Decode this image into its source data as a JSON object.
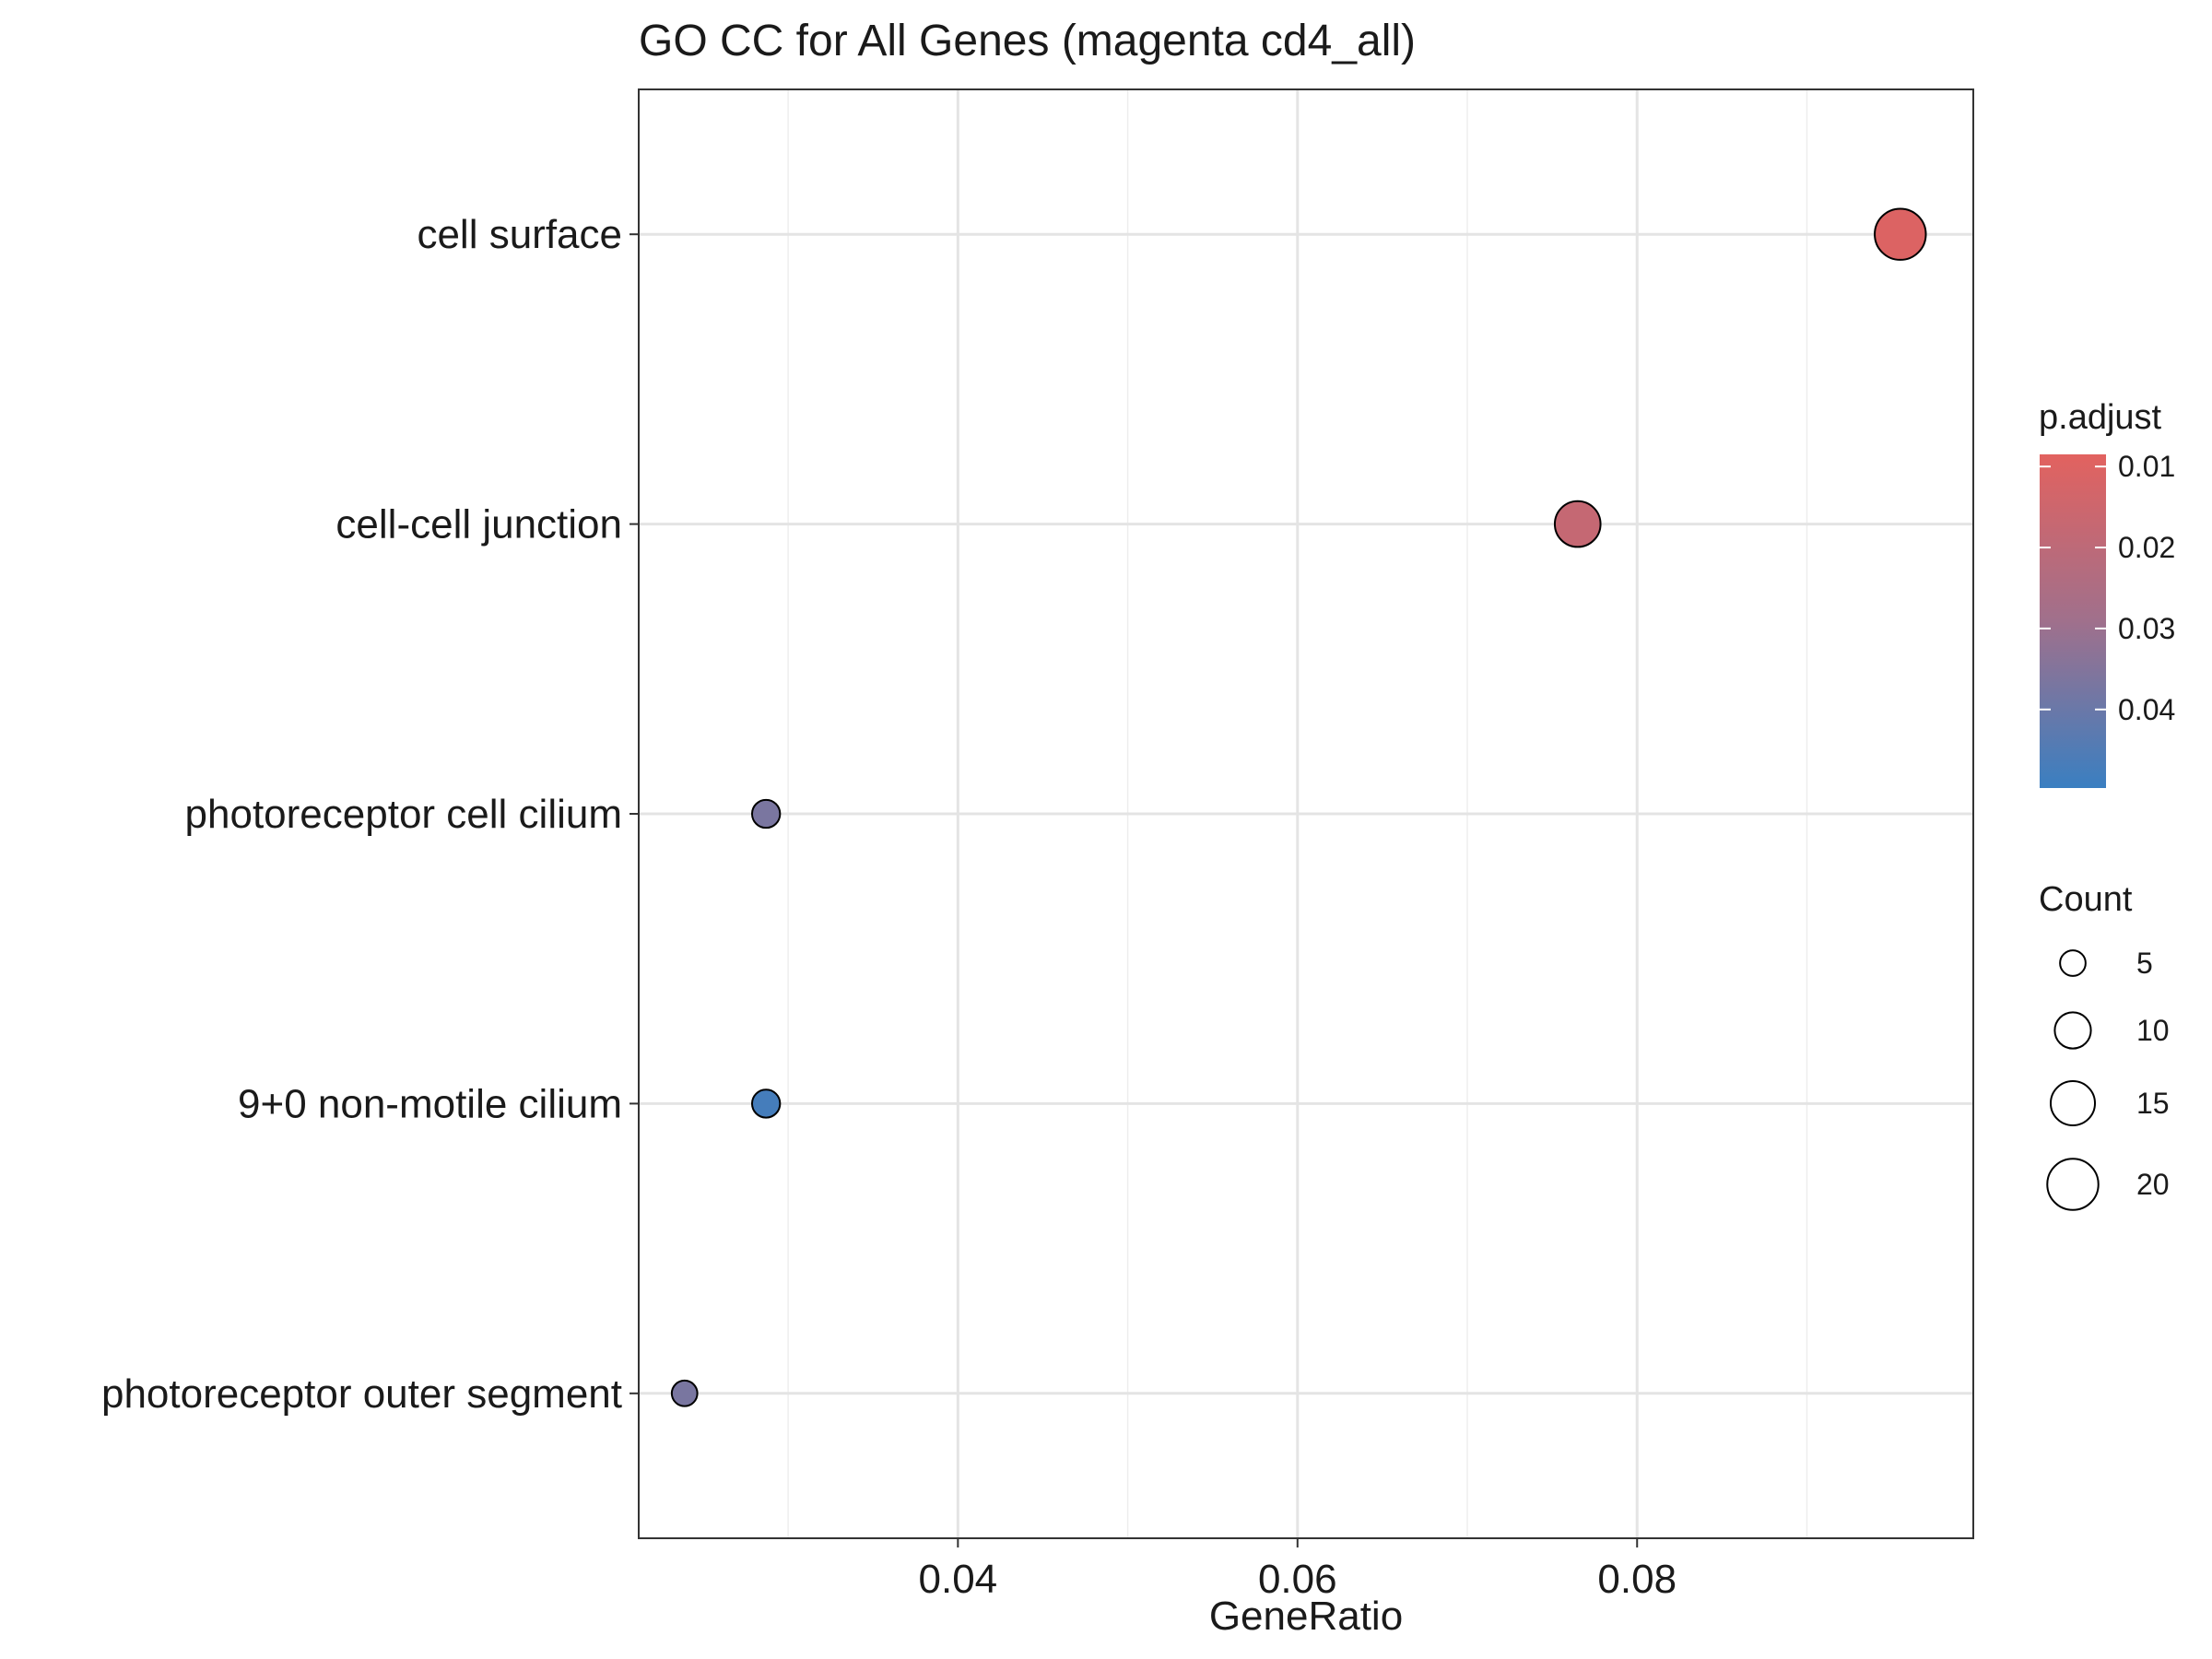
{
  "chart_data": {
    "type": "scatter",
    "title": "GO CC for All Genes (magenta cd4_all)",
    "xlabel": "GeneRatio",
    "ylabel": "",
    "xlim": [
      0.0212,
      0.0998
    ],
    "xticks": [
      0.04,
      0.06,
      0.08
    ],
    "xtick_labels": [
      "0.04",
      "0.06",
      "0.08"
    ],
    "grid": true,
    "categories": [
      "cell surface",
      "cell-cell junction",
      "photoreceptor cell cilium",
      "9+0 non-motile cilium",
      "photoreceptor outer segment"
    ],
    "points": [
      {
        "term": "cell surface",
        "gene_ratio": 0.0955,
        "count": 20,
        "p_adjust": 0.0105
      },
      {
        "term": "cell-cell junction",
        "gene_ratio": 0.0765,
        "count": 16,
        "p_adjust": 0.0175
      },
      {
        "term": "photoreceptor cell cilium",
        "gene_ratio": 0.0287,
        "count": 6,
        "p_adjust": 0.0368
      },
      {
        "term": "9+0 non-motile cilium",
        "gene_ratio": 0.0287,
        "count": 6,
        "p_adjust": 0.0475
      },
      {
        "term": "photoreceptor outer segment",
        "gene_ratio": 0.0239,
        "count": 5,
        "p_adjust": 0.037
      }
    ],
    "color_legend": {
      "title": "p.adjust",
      "low_color": "#E2625F",
      "high_color": "#3A7FC1",
      "range": [
        0.0085,
        0.0497
      ],
      "ticks": [
        0.01,
        0.02,
        0.03,
        0.04
      ],
      "tick_labels": [
        "0.01",
        "0.02",
        "0.03",
        "0.04"
      ]
    },
    "size_legend": {
      "title": "Count",
      "values": [
        5,
        10,
        15,
        20
      ],
      "labels": [
        "5",
        "10",
        "15",
        "20"
      ]
    },
    "legend_position": "right"
  }
}
